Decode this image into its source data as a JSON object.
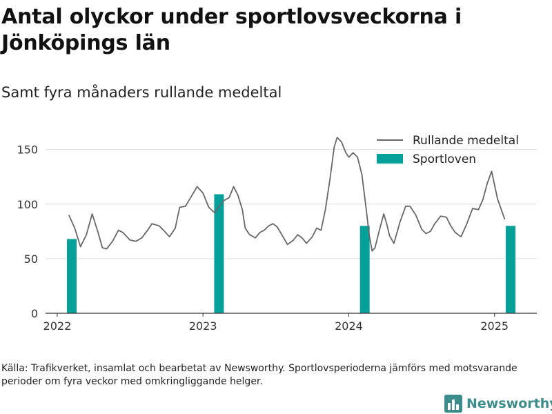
{
  "title": "Antal olyckor under sportlovsveckorna i Jönköpings län",
  "subtitle": "Samt fyra månaders rullande medeltal",
  "footnote": "Källa: Trafikverket, insamlat och bearbetat av Newsworthy. Sportlovsperioderna jämförs med motsvarande perioder om fyra veckor med omkringliggande helger.",
  "brand": {
    "name": "Newsworthy",
    "color": "#3d8c8c",
    "icon": "bar-chart-logo-icon"
  },
  "colors": {
    "bar": "#06a09a",
    "line": "#666666",
    "grid": "#dddddd",
    "axis": "#333333"
  },
  "chart_data": {
    "type": "bar+line",
    "xlabel": "",
    "ylabel": "",
    "xlim": [
      2021.92,
      2025.29
    ],
    "ylim": [
      0,
      170
    ],
    "grid": true,
    "legend_position": "top-right",
    "x_ticks": [
      2022,
      2023,
      2024,
      2025
    ],
    "x_tick_labels": [
      "2022",
      "2023",
      "2024",
      "2025"
    ],
    "y_ticks": [
      0,
      50,
      100,
      150
    ],
    "y_tick_labels": [
      "0",
      "50",
      "100",
      "150"
    ],
    "series": [
      {
        "name": "Rullande medeltal",
        "kind": "line",
        "points": [
          [
            2022.08,
            90
          ],
          [
            2022.12,
            78
          ],
          [
            2022.16,
            61
          ],
          [
            2022.2,
            72
          ],
          [
            2022.24,
            91
          ],
          [
            2022.28,
            74
          ],
          [
            2022.31,
            60
          ],
          [
            2022.34,
            59
          ],
          [
            2022.38,
            66
          ],
          [
            2022.42,
            76
          ],
          [
            2022.45,
            74
          ],
          [
            2022.5,
            67
          ],
          [
            2022.54,
            66
          ],
          [
            2022.58,
            69
          ],
          [
            2022.62,
            76
          ],
          [
            2022.65,
            82
          ],
          [
            2022.7,
            80
          ],
          [
            2022.73,
            76
          ],
          [
            2022.77,
            70
          ],
          [
            2022.81,
            78
          ],
          [
            2022.84,
            97
          ],
          [
            2022.88,
            98
          ],
          [
            2022.92,
            107
          ],
          [
            2022.96,
            116
          ],
          [
            2023.0,
            110
          ],
          [
            2023.04,
            97
          ],
          [
            2023.08,
            92
          ],
          [
            2023.1,
            96
          ],
          [
            2023.14,
            103
          ],
          [
            2023.18,
            106
          ],
          [
            2023.21,
            116
          ],
          [
            2023.24,
            108
          ],
          [
            2023.27,
            95
          ],
          [
            2023.29,
            78
          ],
          [
            2023.32,
            72
          ],
          [
            2023.36,
            69
          ],
          [
            2023.39,
            74
          ],
          [
            2023.42,
            76
          ],
          [
            2023.45,
            80
          ],
          [
            2023.48,
            82
          ],
          [
            2023.51,
            79
          ],
          [
            2023.54,
            72
          ],
          [
            2023.58,
            63
          ],
          [
            2023.62,
            67
          ],
          [
            2023.65,
            72
          ],
          [
            2023.68,
            69
          ],
          [
            2023.71,
            64
          ],
          [
            2023.75,
            70
          ],
          [
            2023.78,
            78
          ],
          [
            2023.81,
            76
          ],
          [
            2023.84,
            95
          ],
          [
            2023.87,
            122
          ],
          [
            2023.9,
            152
          ],
          [
            2023.92,
            161
          ],
          [
            2023.95,
            157
          ],
          [
            2023.98,
            147
          ],
          [
            2024.0,
            143
          ],
          [
            2024.03,
            147
          ],
          [
            2024.06,
            143
          ],
          [
            2024.09,
            127
          ],
          [
            2024.12,
            95
          ],
          [
            2024.14,
            72
          ],
          [
            2024.16,
            57
          ],
          [
            2024.18,
            60
          ],
          [
            2024.21,
            76
          ],
          [
            2024.24,
            91
          ],
          [
            2024.26,
            82
          ],
          [
            2024.28,
            71
          ],
          [
            2024.31,
            64
          ],
          [
            2024.35,
            83
          ],
          [
            2024.39,
            98
          ],
          [
            2024.42,
            98
          ],
          [
            2024.46,
            90
          ],
          [
            2024.5,
            77
          ],
          [
            2024.53,
            73
          ],
          [
            2024.56,
            75
          ],
          [
            2024.59,
            82
          ],
          [
            2024.63,
            89
          ],
          [
            2024.67,
            88
          ],
          [
            2024.7,
            80
          ],
          [
            2024.73,
            74
          ],
          [
            2024.77,
            70
          ],
          [
            2024.81,
            82
          ],
          [
            2024.85,
            96
          ],
          [
            2024.89,
            95
          ],
          [
            2024.92,
            104
          ],
          [
            2024.95,
            119
          ],
          [
            2024.98,
            130
          ],
          [
            2025.02,
            105
          ],
          [
            2025.07,
            86
          ]
        ]
      },
      {
        "name": "Sportloven",
        "kind": "bar",
        "points": [
          [
            2022.1,
            68
          ],
          [
            2023.11,
            109
          ],
          [
            2024.11,
            80
          ],
          [
            2025.11,
            80
          ]
        ]
      }
    ]
  }
}
